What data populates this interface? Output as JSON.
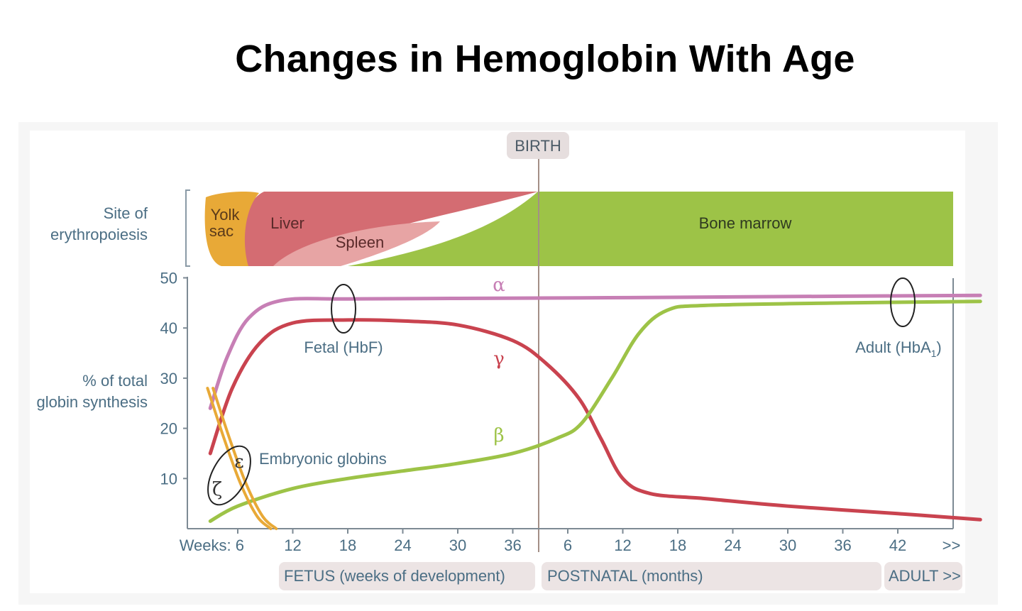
{
  "title": "Changes in Hemoglobin With Age",
  "colors": {
    "alpha": "#c77fb5",
    "gamma": "#c9434f",
    "beta": "#9dc347",
    "embryonic": "#e8a937",
    "bone_marrow": "#9dc347",
    "liver": "#d46c72",
    "spleen": "#e7a4a4",
    "yolk_sac": "#e8a937",
    "axis_text": "#4b6e84",
    "band": "#ece4e4"
  },
  "chart_data": {
    "type": "line",
    "title": "",
    "ylabel": "% of total globin synthesis",
    "ylim": [
      0,
      50
    ],
    "y_ticks": [
      "10",
      "20",
      "30",
      "40",
      "50"
    ],
    "x_tick_labels": [
      "Weeks: 6",
      "12",
      "18",
      "24",
      "30",
      "36",
      "6",
      "12",
      "18",
      "24",
      "30",
      "36",
      "42",
      ">>"
    ],
    "x_units": "ticks from start of fetal period (birth at 7.25)",
    "birth_label": "BIRTH",
    "periods": [
      "FETUS (weeks of development)",
      "POSTNATAL (months)",
      "ADULT >>"
    ],
    "site_label": "Site of erythropoiesis",
    "sites": [
      "Yolk sac",
      "Liver",
      "Spleen",
      "Bone marrow"
    ],
    "annotations": [
      "Fetal (HbF)",
      "Adult (HbA1)",
      "Embryonic globins"
    ],
    "series": [
      {
        "name": "α",
        "points": [
          [
            0.5,
            24
          ],
          [
            0.8,
            34
          ],
          [
            1.2,
            42
          ],
          [
            1.8,
            45.5
          ],
          [
            3,
            45.8
          ],
          [
            5,
            45.9
          ],
          [
            7.25,
            46
          ],
          [
            10,
            46.2
          ],
          [
            14.5,
            46.5
          ]
        ]
      },
      {
        "name": "γ",
        "points": [
          [
            0.5,
            15
          ],
          [
            0.9,
            28
          ],
          [
            1.4,
            37
          ],
          [
            2,
            41
          ],
          [
            3,
            41.6
          ],
          [
            4,
            41.4
          ],
          [
            5,
            40.6
          ],
          [
            6,
            37.5
          ],
          [
            6.6,
            33
          ],
          [
            7.2,
            26
          ],
          [
            7.6,
            18
          ],
          [
            8,
            10
          ],
          [
            8.5,
            7
          ],
          [
            9.5,
            6
          ],
          [
            11,
            4.5
          ],
          [
            13,
            3
          ],
          [
            14.5,
            1.8
          ]
        ]
      },
      {
        "name": "β",
        "points": [
          [
            0.5,
            1.5
          ],
          [
            1,
            4.5
          ],
          [
            2,
            8
          ],
          [
            3,
            10
          ],
          [
            4,
            11.5
          ],
          [
            5,
            13
          ],
          [
            6,
            15
          ],
          [
            6.8,
            18
          ],
          [
            7.25,
            21
          ],
          [
            7.8,
            30
          ],
          [
            8.3,
            39
          ],
          [
            8.8,
            43.5
          ],
          [
            9.5,
            44.5
          ],
          [
            12,
            45
          ],
          [
            14.5,
            45.3
          ]
        ]
      },
      {
        "name": "ε",
        "points": [
          [
            0.55,
            28
          ],
          [
            0.85,
            18
          ],
          [
            1.15,
            9
          ],
          [
            1.45,
            2.5
          ],
          [
            1.7,
            0
          ]
        ]
      },
      {
        "name": "ζ",
        "points": [
          [
            0.45,
            28
          ],
          [
            0.75,
            18
          ],
          [
            1.05,
            9
          ],
          [
            1.35,
            2.5
          ],
          [
            1.6,
            0
          ]
        ]
      }
    ]
  }
}
